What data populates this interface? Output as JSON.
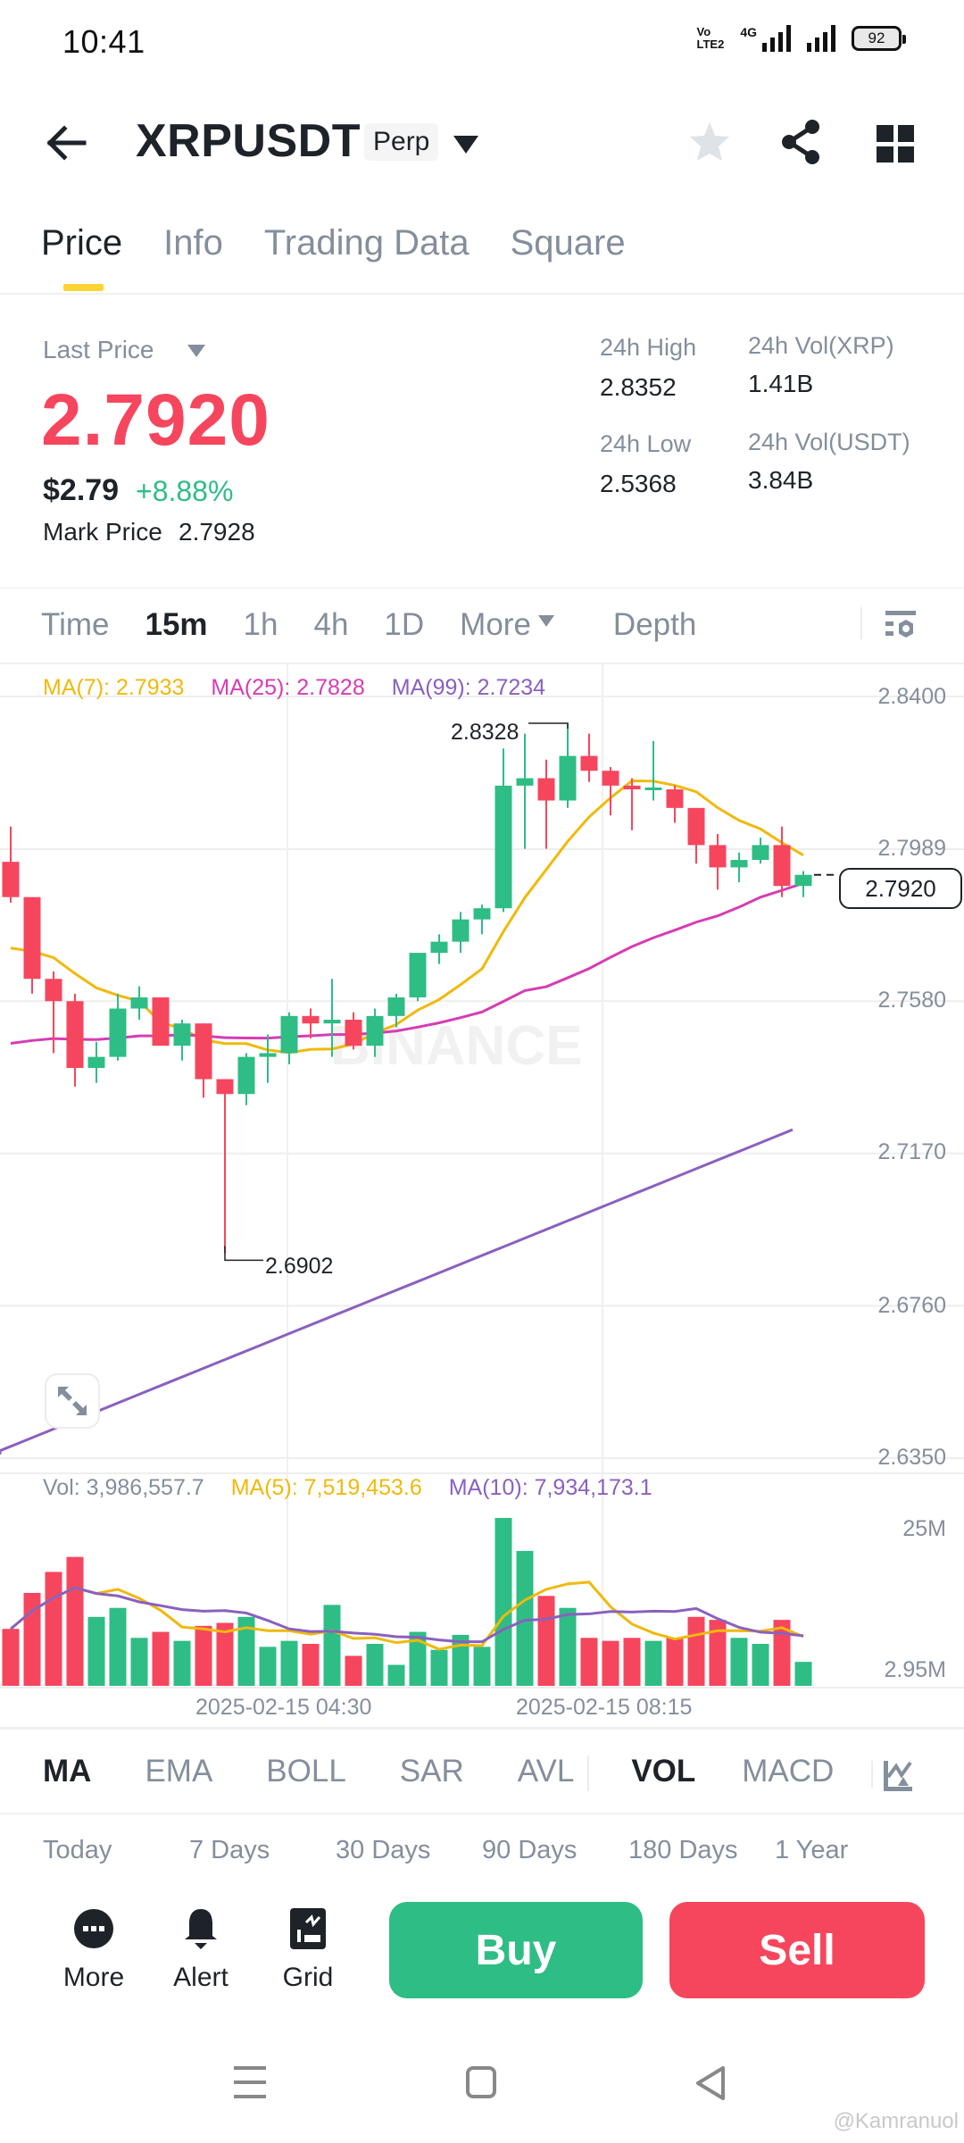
{
  "status_bar": {
    "time": "10:41",
    "volte": [
      "Vo",
      "LTE2"
    ],
    "network": "4G",
    "battery": "92"
  },
  "header": {
    "title": "XRPUSDT",
    "badge": "Perp",
    "icons": [
      "back-arrow-icon",
      "caret-down-icon",
      "star-icon",
      "share-icon",
      "grid-layout-icon"
    ]
  },
  "tabs": [
    {
      "label": "Price",
      "active": true
    },
    {
      "label": "Info",
      "active": false
    },
    {
      "label": "Trading Data",
      "active": false
    },
    {
      "label": "Square",
      "active": false
    }
  ],
  "price": {
    "last_price_label": "Last Price",
    "last_price": "2.7920",
    "usd_price": "$2.79",
    "change_pct": "+8.88%",
    "mark_price_label": "Mark Price",
    "mark_price": "2.7928"
  },
  "stats": {
    "high_label": "24h High",
    "high": "2.8352",
    "low_label": "24h Low",
    "low": "2.5368",
    "vol_base_label": "24h Vol(XRP)",
    "vol_base": "1.41B",
    "vol_quote_label": "24h Vol(USDT)",
    "vol_quote": "3.84B"
  },
  "intervals": {
    "items": [
      "Time",
      "15m",
      "1h",
      "4h",
      "1D",
      "More"
    ],
    "active": "15m",
    "depth": "Depth"
  },
  "ma_legend": {
    "ma7": "MA(7): 2.7933",
    "ma25": "MA(25): 2.7828",
    "ma99": "MA(99): 2.7234"
  },
  "vol_legend": {
    "vol": "Vol: 3,986,557.7",
    "ma5": "MA(5): 7,519,453.6",
    "ma10": "MA(10): 7,934,173.1"
  },
  "price_axis": [
    "2.8400",
    "2.7989",
    "2.7580",
    "2.7170",
    "2.6760",
    "2.6350"
  ],
  "volume_axis": [
    "25M",
    "2.95M"
  ],
  "dates": [
    "2025-02-15 04:30",
    "2025-02-15 08:15"
  ],
  "annotations": {
    "high": "2.8328",
    "low": "2.6902",
    "current": "2.7920"
  },
  "watermark_logo": "BINANCE",
  "colors": {
    "up": "#2ebd85",
    "down": "#f6465d",
    "ma7": "#f0b90b",
    "ma25": "#d63cb4",
    "ma99": "#8a60bf",
    "accent": "#fcd535",
    "muted": "#848e9c"
  },
  "indicators": {
    "main": [
      "MA",
      "EMA",
      "BOLL",
      "SAR",
      "AVL"
    ],
    "sub": [
      "VOL",
      "MACD"
    ],
    "active_main": "MA",
    "active_sub": "VOL"
  },
  "ranges": [
    "Today",
    "7 Days",
    "30 Days",
    "90 Days",
    "180 Days",
    "1 Year"
  ],
  "actions": [
    {
      "label": "More",
      "icon": "more-dots-icon"
    },
    {
      "label": "Alert",
      "icon": "bell-icon"
    },
    {
      "label": "Grid",
      "icon": "grid-bot-icon"
    }
  ],
  "buy_label": "Buy",
  "sell_label": "Sell",
  "watermark": "@Kamranuol",
  "chart_data": {
    "type": "candlestick",
    "title": "XRPUSDT Perp 15m",
    "ylim": [
      2.635,
      2.84
    ],
    "yticks": [
      2.84,
      2.7989,
      2.758,
      2.717,
      2.676,
      2.635
    ],
    "xlabels": [
      "2025-02-15 04:30",
      "2025-02-15 08:15"
    ],
    "candles": [
      {
        "o": 2.7955,
        "h": 2.805,
        "l": 2.7845,
        "c": 2.786
      },
      {
        "o": 2.786,
        "h": 2.786,
        "l": 2.76,
        "c": 2.764
      },
      {
        "o": 2.764,
        "h": 2.766,
        "l": 2.744,
        "c": 2.758
      },
      {
        "o": 2.758,
        "h": 2.76,
        "l": 2.735,
        "c": 2.74
      },
      {
        "o": 2.74,
        "h": 2.747,
        "l": 2.736,
        "c": 2.743
      },
      {
        "o": 2.743,
        "h": 2.76,
        "l": 2.742,
        "c": 2.756
      },
      {
        "o": 2.756,
        "h": 2.762,
        "l": 2.753,
        "c": 2.759
      },
      {
        "o": 2.759,
        "h": 2.759,
        "l": 2.746,
        "c": 2.746
      },
      {
        "o": 2.746,
        "h": 2.753,
        "l": 2.742,
        "c": 2.752
      },
      {
        "o": 2.752,
        "h": 2.752,
        "l": 2.732,
        "c": 2.737
      },
      {
        "o": 2.737,
        "h": 2.737,
        "l": 2.6902,
        "c": 2.733
      },
      {
        "o": 2.733,
        "h": 2.744,
        "l": 2.73,
        "c": 2.743
      },
      {
        "o": 2.743,
        "h": 2.749,
        "l": 2.736,
        "c": 2.744
      },
      {
        "o": 2.744,
        "h": 2.755,
        "l": 2.741,
        "c": 2.754
      },
      {
        "o": 2.754,
        "h": 2.756,
        "l": 2.748,
        "c": 2.752
      },
      {
        "o": 2.752,
        "h": 2.764,
        "l": 2.743,
        "c": 2.753
      },
      {
        "o": 2.753,
        "h": 2.755,
        "l": 2.745,
        "c": 2.746
      },
      {
        "o": 2.746,
        "h": 2.756,
        "l": 2.743,
        "c": 2.754
      },
      {
        "o": 2.754,
        "h": 2.76,
        "l": 2.751,
        "c": 2.759
      },
      {
        "o": 2.759,
        "h": 2.771,
        "l": 2.758,
        "c": 2.771
      },
      {
        "o": 2.771,
        "h": 2.776,
        "l": 2.768,
        "c": 2.774
      },
      {
        "o": 2.774,
        "h": 2.782,
        "l": 2.771,
        "c": 2.78
      },
      {
        "o": 2.78,
        "h": 2.784,
        "l": 2.776,
        "c": 2.783
      },
      {
        "o": 2.783,
        "h": 2.826,
        "l": 2.782,
        "c": 2.816
      },
      {
        "o": 2.816,
        "h": 2.83,
        "l": 2.799,
        "c": 2.818
      },
      {
        "o": 2.818,
        "h": 2.823,
        "l": 2.799,
        "c": 2.812
      },
      {
        "o": 2.812,
        "h": 2.8328,
        "l": 2.81,
        "c": 2.824
      },
      {
        "o": 2.824,
        "h": 2.83,
        "l": 2.817,
        "c": 2.82
      },
      {
        "o": 2.82,
        "h": 2.821,
        "l": 2.808,
        "c": 2.816
      },
      {
        "o": 2.816,
        "h": 2.818,
        "l": 2.804,
        "c": 2.815
      },
      {
        "o": 2.815,
        "h": 2.828,
        "l": 2.812,
        "c": 2.8155
      },
      {
        "o": 2.815,
        "h": 2.816,
        "l": 2.806,
        "c": 2.81
      },
      {
        "o": 2.81,
        "h": 2.81,
        "l": 2.795,
        "c": 2.8
      },
      {
        "o": 2.8,
        "h": 2.803,
        "l": 2.788,
        "c": 2.794
      },
      {
        "o": 2.794,
        "h": 2.798,
        "l": 2.79,
        "c": 2.796
      },
      {
        "o": 2.796,
        "h": 2.802,
        "l": 2.795,
        "c": 2.8
      },
      {
        "o": 2.8,
        "h": 2.805,
        "l": 2.786,
        "c": 2.789
      },
      {
        "o": 2.789,
        "h": 2.793,
        "l": 2.786,
        "c": 2.792
      }
    ],
    "volume": [
      9.5,
      15.5,
      19,
      21.5,
      11.5,
      13,
      8,
      9,
      7.5,
      10,
      10.5,
      11.5,
      6.5,
      7.5,
      7,
      13.5,
      5,
      7,
      3.5,
      9,
      6,
      8.5,
      6.5,
      28,
      22.5,
      15,
      13,
      8,
      7.5,
      8,
      7.5,
      8,
      11.5,
      11,
      8,
      7,
      11,
      4
    ],
    "volume_unit": "M",
    "series": [
      {
        "name": "MA(7)",
        "last": 2.7933
      },
      {
        "name": "MA(25)",
        "last": 2.7828
      },
      {
        "name": "MA(99)",
        "last": 2.7234
      },
      {
        "name": "VOL MA(5)",
        "last": 7519453.6
      },
      {
        "name": "VOL MA(10)",
        "last": 7934173.1
      }
    ],
    "annotations": [
      {
        "label": "2.8328",
        "type": "high"
      },
      {
        "label": "2.6902",
        "type": "low"
      },
      {
        "label": "2.7920",
        "type": "last"
      }
    ]
  }
}
